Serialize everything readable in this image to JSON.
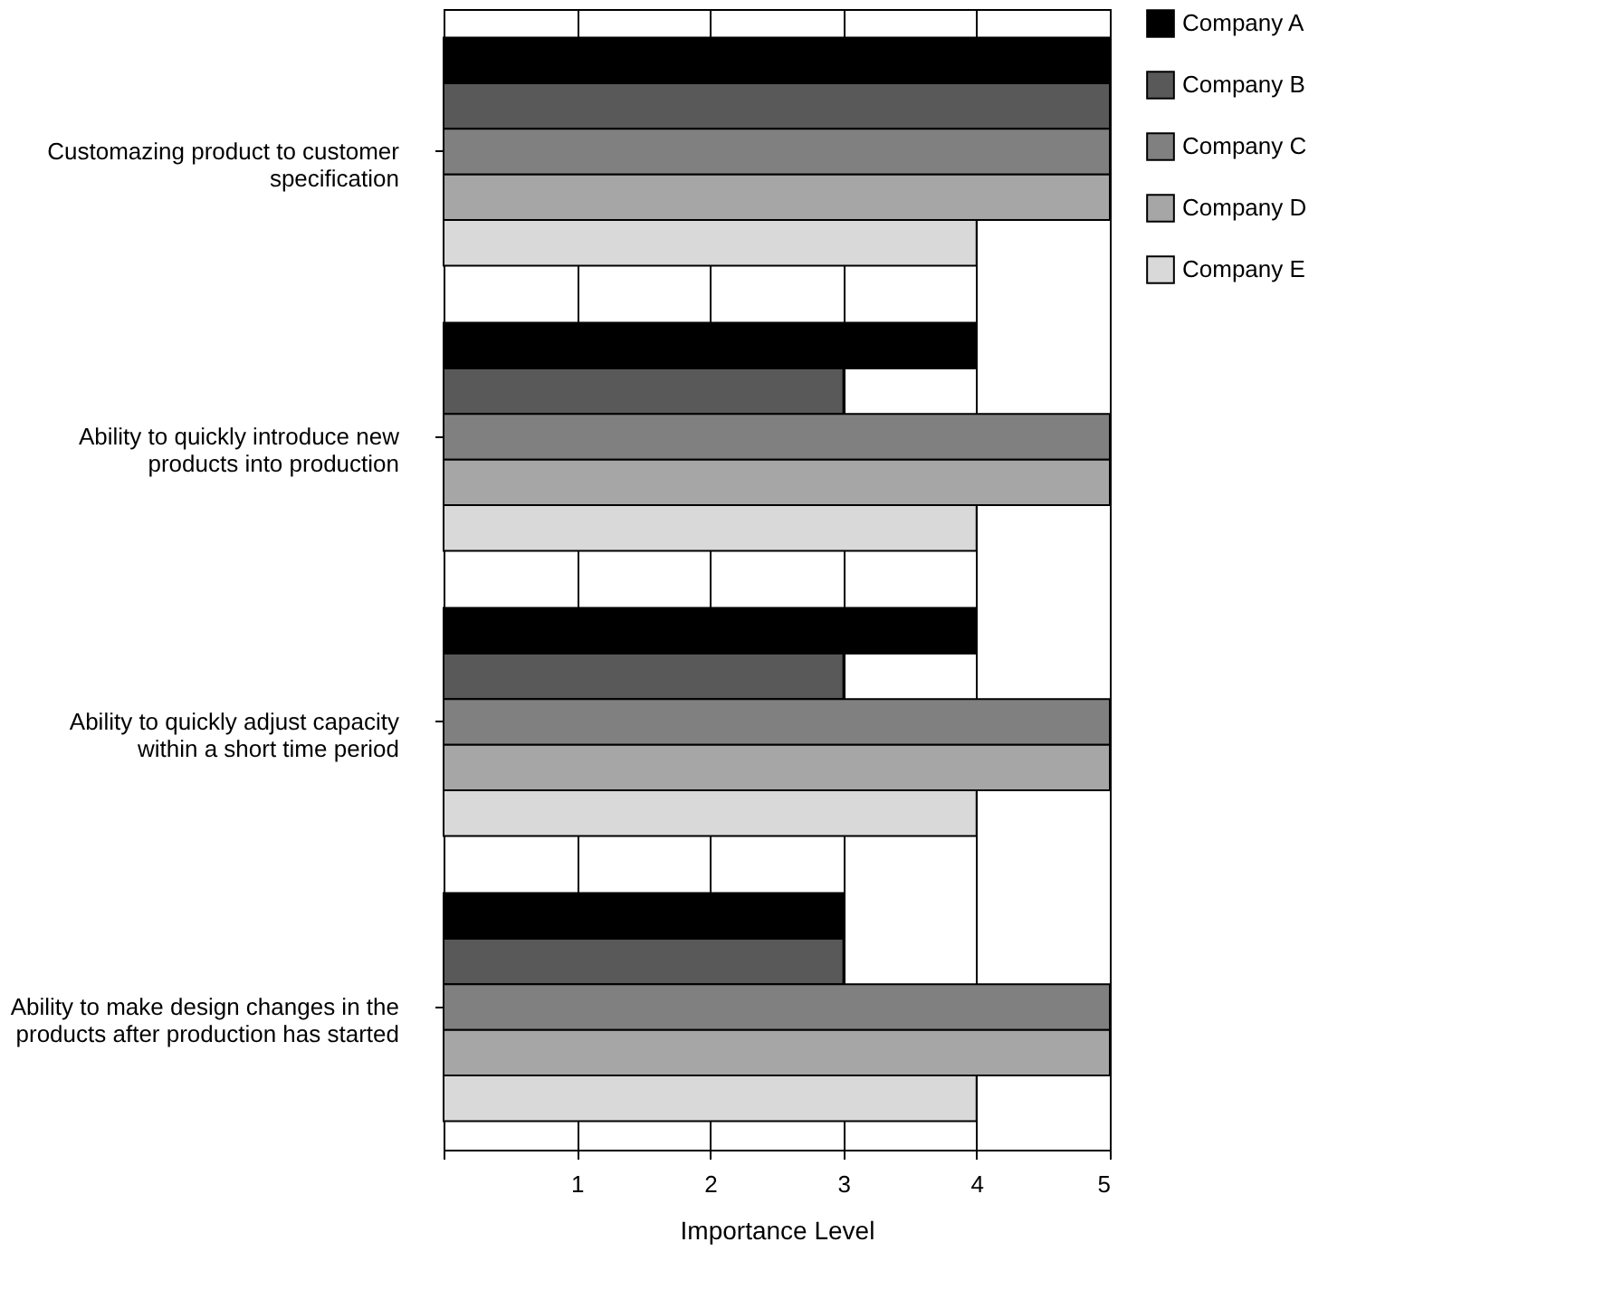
{
  "chart_data": {
    "type": "bar",
    "orientation": "horizontal",
    "xlabel": "Importance Level",
    "categories": [
      "Customazing product to customer specification",
      "Ability to quickly introduce new products into production",
      "Ability to quickly adjust capacity within a short time period",
      "Ability to make design changes in the products after production has started"
    ],
    "series": [
      {
        "name": "Company A",
        "color": "#000000",
        "values": [
          5,
          4,
          4,
          3
        ]
      },
      {
        "name": "Company B",
        "color": "#595959",
        "values": [
          5,
          3,
          3,
          3
        ]
      },
      {
        "name": "Company C",
        "color": "#808080",
        "values": [
          5,
          5,
          5,
          5
        ]
      },
      {
        "name": "Company D",
        "color": "#a6a6a6",
        "values": [
          5,
          5,
          5,
          5
        ]
      },
      {
        "name": "Company E",
        "color": "#d9d9d9",
        "values": [
          4,
          4,
          4,
          4
        ]
      }
    ],
    "xlim": [
      0,
      5
    ],
    "xticks": [
      {
        "value": 0,
        "label": null
      },
      1,
      2,
      3,
      4,
      5
    ],
    "grid": "x",
    "legend": "top right"
  }
}
